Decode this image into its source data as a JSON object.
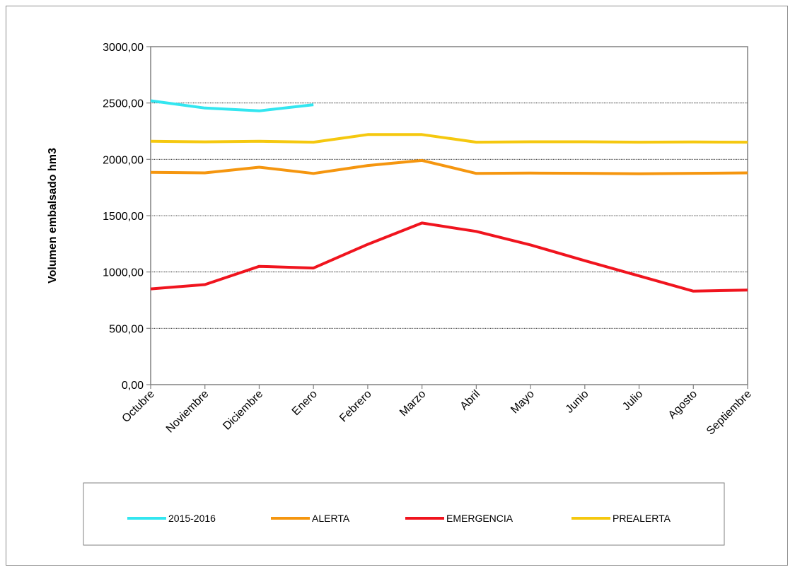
{
  "chart_data": {
    "type": "line",
    "title": "",
    "xlabel": "",
    "ylabel": "Volumen embalsado hm3",
    "ylim": [
      0,
      3000
    ],
    "yticks": [
      0,
      500,
      1000,
      1500,
      2000,
      2500,
      3000
    ],
    "ytick_labels": [
      "0,00",
      "500,00",
      "1000,00",
      "1500,00",
      "2000,00",
      "2500,00",
      "3000,00"
    ],
    "grid": "horizontal",
    "legend_position": "bottom",
    "categories": [
      "Octubre",
      "Noviembre",
      "Diciembre",
      "Enero",
      "Febrero",
      "Marzo",
      "Abril",
      "Mayo",
      "Junio",
      "Julio",
      "Agosto",
      "Septiembre"
    ],
    "series": [
      {
        "name": "2015-2016",
        "color": "#33e6f0",
        "values": [
          2520,
          2455,
          2430,
          2485,
          null,
          null,
          null,
          null,
          null,
          null,
          null,
          null
        ]
      },
      {
        "name": "ALERTA",
        "color": "#f5960f",
        "values": [
          1885,
          1880,
          1930,
          1875,
          1945,
          1990,
          1875,
          1878,
          1876,
          1872,
          1876,
          1880
        ]
      },
      {
        "name": "EMERGENCIA",
        "color": "#f0141e",
        "values": [
          850,
          888,
          1050,
          1035,
          1245,
          1435,
          1360,
          1240,
          1100,
          965,
          830,
          840
        ]
      },
      {
        "name": "PREALERTA",
        "color": "#f5c80f",
        "values": [
          2160,
          2155,
          2160,
          2152,
          2220,
          2220,
          2152,
          2156,
          2156,
          2152,
          2154,
          2152
        ]
      }
    ]
  }
}
